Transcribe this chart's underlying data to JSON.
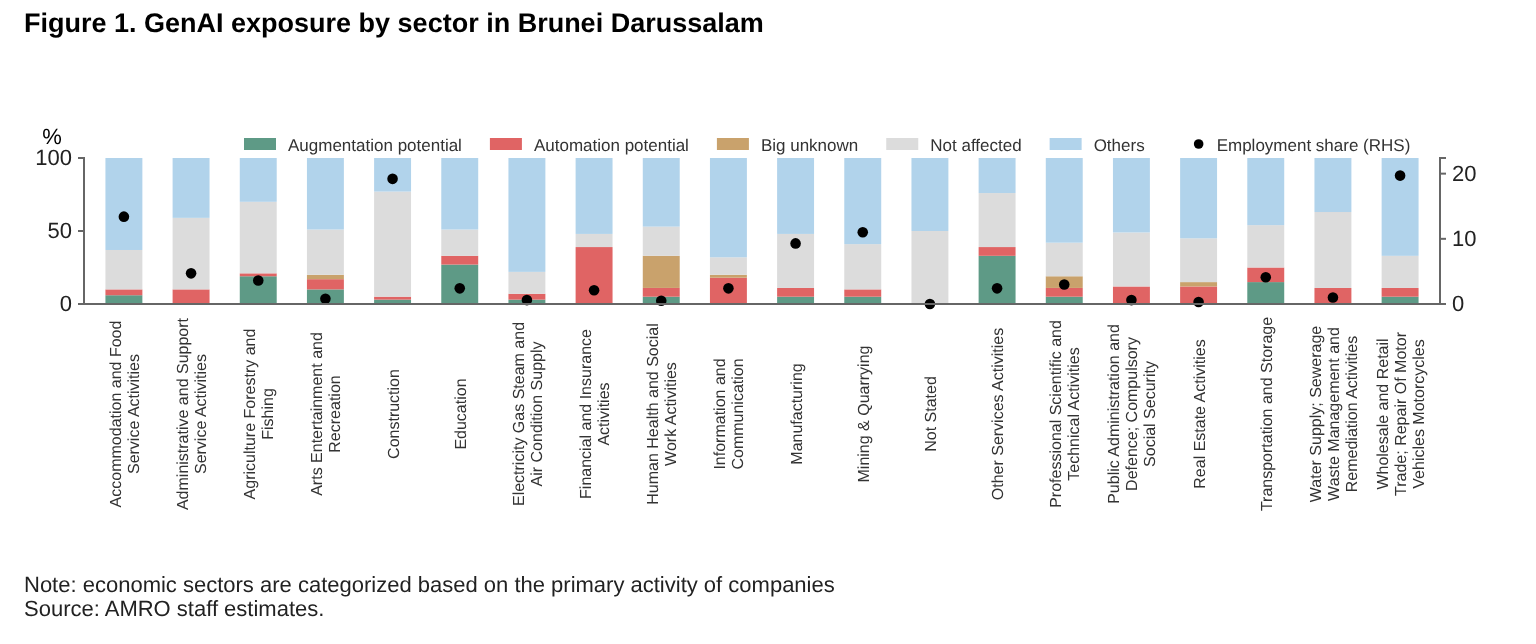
{
  "chart_data": {
    "type": "bar",
    "stacked": true,
    "title": "Figure 1. GenAI exposure by sector in Brunei Darussalam",
    "ylabel": "%",
    "categories": [
      "Accommodation and Food Service Activities",
      "Administrative and Support Service Activities",
      "Agriculture Forestry and Fishing",
      "Arts Entertainment and Recreation",
      "Construction",
      "Education",
      "Electricity Gas Steam and Air Condition Supply",
      "Financial and Insurance Activities",
      "Human Health and Social Work Activities",
      "Information and Communication",
      "Manufacturing",
      "Mining & Quarrying",
      "Not Stated",
      "Other Services Activities",
      "Professional Scientific and Technical Activities",
      "Public Administration and Defence; Compulsory Social Security",
      "Real Estate Activities",
      "Transportation and Storage",
      "Water Supply; Sewerage Waste Management and Remediation Activities",
      "Wholesale and Retail Trade; Repair Of Motor Vehicles Motorcycles"
    ],
    "series": [
      {
        "name": "Augmentation potential",
        "color": "#5e9a86",
        "values": [
          6,
          0,
          19,
          10,
          3,
          27,
          3,
          0,
          5,
          0,
          5,
          5,
          0,
          33,
          5,
          0,
          0,
          15,
          0,
          5
        ]
      },
      {
        "name": "Automation potential",
        "color": "#e06464",
        "values": [
          4,
          10,
          2,
          7,
          2,
          6,
          4,
          39,
          6,
          18,
          6,
          5,
          0,
          6,
          6,
          12,
          12,
          10,
          11,
          6
        ]
      },
      {
        "name": "Big unknown",
        "color": "#c9a26c",
        "values": [
          0,
          0,
          0,
          3,
          0,
          0,
          0,
          0,
          22,
          2,
          0,
          0,
          0,
          0,
          8,
          0,
          3,
          0,
          0,
          0
        ]
      },
      {
        "name": "Not affected",
        "color": "#dcdcdc",
        "values": [
          27,
          49,
          49,
          31,
          72,
          18,
          15,
          9,
          20,
          12,
          37,
          31,
          50,
          37,
          23,
          37,
          30,
          29,
          52,
          22
        ]
      },
      {
        "name": "Others",
        "color": "#b1d3eb",
        "values": [
          63,
          41,
          30,
          49,
          23,
          49,
          78,
          52,
          47,
          68,
          52,
          59,
          50,
          24,
          58,
          51,
          55,
          46,
          37,
          67
        ]
      },
      {
        "name": "Employment share (RHS)",
        "type": "scatter",
        "axis": "y2",
        "color": "#000000",
        "values": [
          13.4,
          4.7,
          3.6,
          0.8,
          19.2,
          2.4,
          0.6,
          2.1,
          0.5,
          2.4,
          9.3,
          11,
          0,
          2.4,
          3,
          0.6,
          0.3,
          4.1,
          1,
          19.7
        ]
      }
    ],
    "ylim": [
      0,
      100
    ],
    "yticks": [
      0,
      50,
      100
    ],
    "y2lim": [
      0,
      22.4
    ],
    "y2ticks": [
      0,
      10,
      20
    ],
    "marker": "circle",
    "legend": "top",
    "annotations": [
      "Note: economic sectors are categorized based on the primary activity of companies",
      "Source: AMRO staff estimates."
    ]
  }
}
